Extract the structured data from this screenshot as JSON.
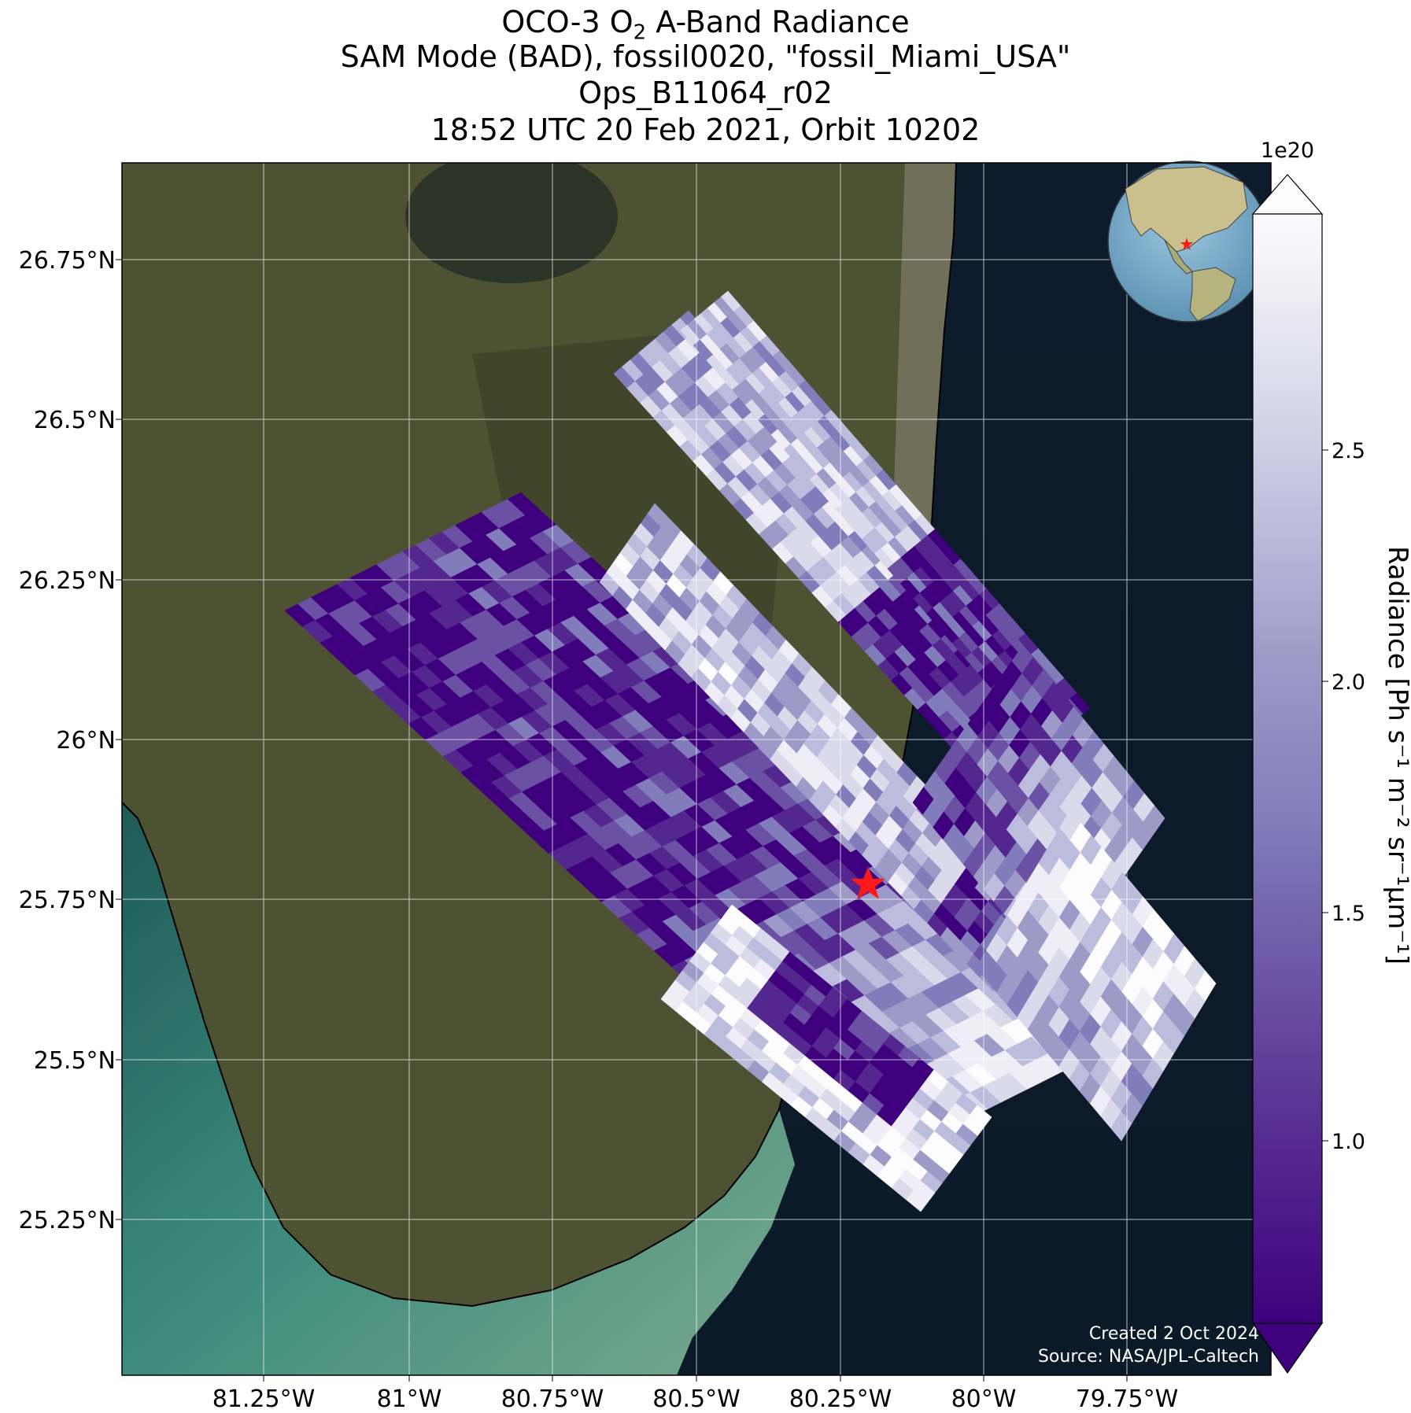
{
  "title": {
    "line1_prefix": "OCO-3 O",
    "line1_sub": "2",
    "line1_suffix": " A-Band Radiance",
    "line2": "SAM Mode (BAD), fossil0020, \"fossil_Miami_USA\"",
    "line3": "Ops_B11064_r02",
    "line4": "18:52 UTC 20 Feb 2021, Orbit 10202"
  },
  "map": {
    "lon_ticks": [
      "81.25°W",
      "81°W",
      "80.75°W",
      "80.5°W",
      "80.25°W",
      "80°W",
      "79.75°W"
    ],
    "lat_ticks": [
      "26.75°N",
      "26.5°N",
      "26.25°N",
      "26°N",
      "25.75°N",
      "25.5°N",
      "25.25°N"
    ],
    "target_marker": "red-star"
  },
  "colorbar": {
    "exponent": "1e20",
    "ticks": [
      "2.5",
      "2.0",
      "1.5",
      "1.0"
    ],
    "label": "Radiance [Ph s⁻¹ m⁻² sr⁻¹μm⁻¹]",
    "colors": [
      "#3f007d",
      "#54278f",
      "#6a51a3",
      "#807dba",
      "#9e9ac8",
      "#bcbddc",
      "#dadaeb",
      "#efedf5",
      "#fcfbfd"
    ]
  },
  "credits": {
    "created": "Created 2 Oct 2024",
    "source": "Source: NASA/JPL-Caltech"
  }
}
